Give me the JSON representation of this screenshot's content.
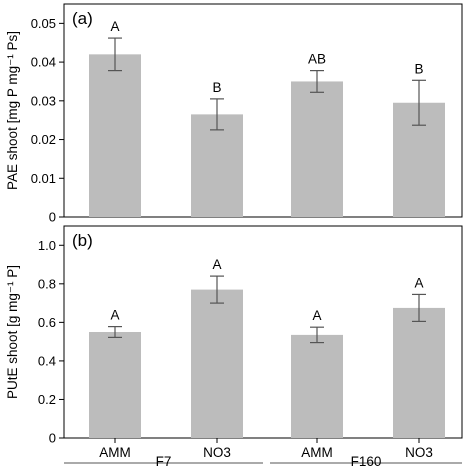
{
  "chart_data": [
    {
      "type": "bar",
      "panel_label": "(a)",
      "ylabel": "PAE shoot [mg P mg⁻¹ Ps]",
      "ylim": [
        0,
        0.055
      ],
      "yticks": [
        0,
        0.01,
        0.02,
        0.03,
        0.04,
        0.05
      ],
      "ytick_labels": [
        "0",
        "0.01",
        "0.02",
        "0.03",
        "0.04",
        "0.05"
      ],
      "categories": [
        "AMM",
        "NO3",
        "AMM",
        "NO3"
      ],
      "values": [
        0.042,
        0.0265,
        0.035,
        0.0295
      ],
      "errors": [
        0.0042,
        0.004,
        0.0028,
        0.0058
      ],
      "letters": [
        "A",
        "B",
        "AB",
        "B"
      ],
      "bar_color": "#bcbcbc"
    },
    {
      "type": "bar",
      "panel_label": "(b)",
      "ylabel": "PUtE shoot [g mg⁻¹ P]",
      "ylim": [
        0,
        1.1
      ],
      "yticks": [
        0,
        0.2,
        0.4,
        0.6,
        0.8,
        1.0
      ],
      "ytick_labels": [
        "0",
        "0.2",
        "0.4",
        "0.6",
        "0.8",
        "1.0"
      ],
      "categories": [
        "AMM",
        "NO3",
        "AMM",
        "NO3"
      ],
      "values": [
        0.55,
        0.77,
        0.535,
        0.675
      ],
      "errors": [
        0.028,
        0.07,
        0.04,
        0.07
      ],
      "letters": [
        "A",
        "A",
        "A",
        "A"
      ],
      "bar_color": "#bcbcbc"
    }
  ],
  "groups": [
    "F7",
    "F160"
  ]
}
